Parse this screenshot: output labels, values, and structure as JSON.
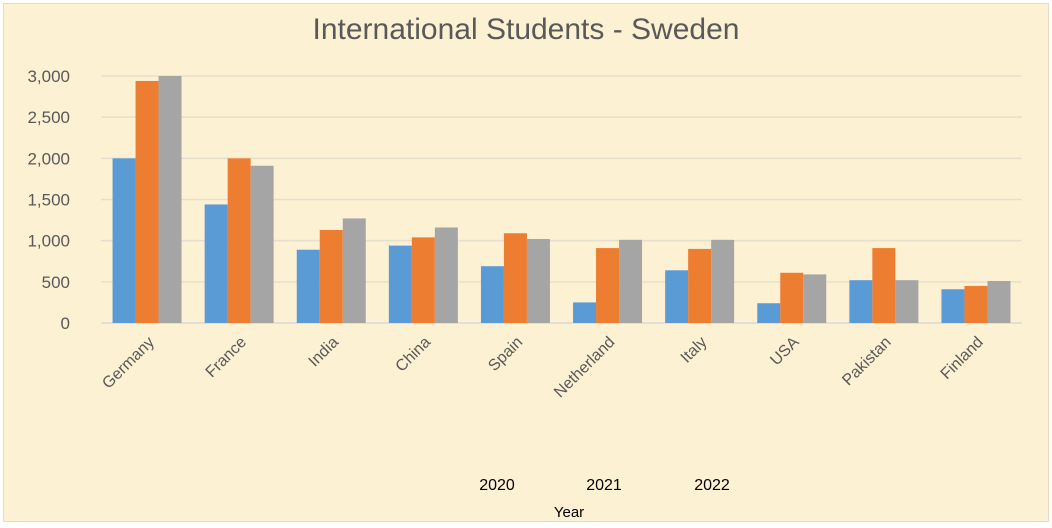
{
  "chart_data": {
    "type": "bar",
    "title": "International Students - Sweden",
    "xlabel": "Year",
    "ylabel": "",
    "categories": [
      "Germany",
      "France",
      "India",
      "China",
      "Spain",
      "Netherland",
      "Italy",
      "USA",
      "Pakistan",
      "Finland"
    ],
    "series": [
      {
        "name": "2020",
        "color": "#5b9bd5",
        "values": [
          2000,
          1440,
          890,
          940,
          690,
          250,
          640,
          240,
          520,
          410
        ]
      },
      {
        "name": "2021",
        "color": "#ed7d31",
        "values": [
          2940,
          2000,
          1130,
          1040,
          1090,
          910,
          900,
          610,
          910,
          450
        ]
      },
      {
        "name": "2022",
        "color": "#a5a5a5",
        "values": [
          3000,
          1910,
          1270,
          1160,
          1020,
          1010,
          1010,
          590,
          520,
          510
        ]
      }
    ],
    "ylim": [
      0,
      3000
    ],
    "yticks": [
      "0",
      "500",
      "1,000",
      "1,500",
      "2,000",
      "2,500",
      "3,000"
    ],
    "grid": true,
    "legend_position": "bottom",
    "colors": {
      "plot_background": "#fdf1d3",
      "gridline": "#e6dfd0",
      "axis_line": "#d9d9d9"
    }
  }
}
